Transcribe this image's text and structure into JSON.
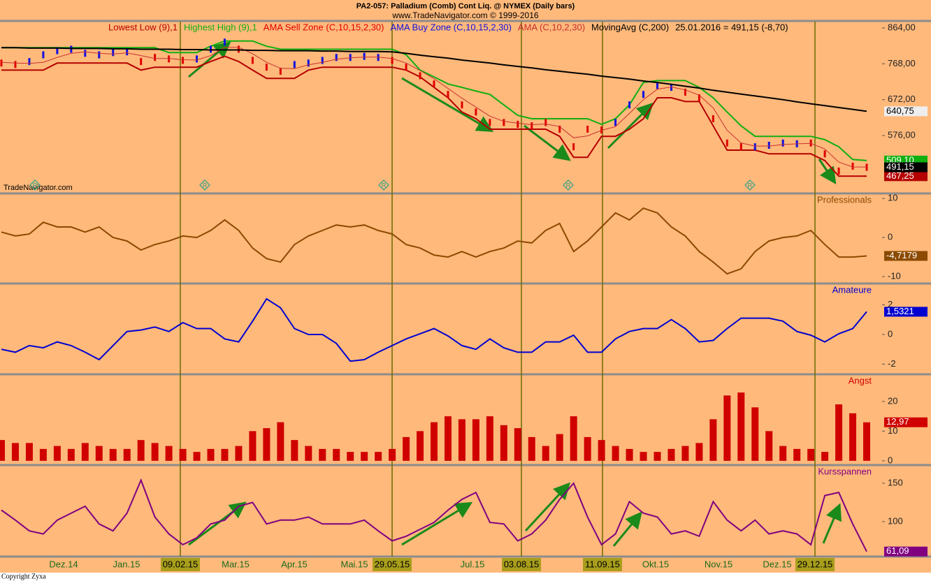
{
  "header": {
    "title": "PA2-057:  Palladium (Comb) Cont Liq. @ NYMEX  (Daily bars)",
    "subtitle": "www.TradeNavigator.com © 1999-2016"
  },
  "watermark": "TradeNavigator.com",
  "copyright": "Copyright  Zyxa",
  "signals": [
    "R",
    "R",
    "R",
    "R",
    "R"
  ],
  "x_axis": {
    "labels": [
      "Dez.14",
      "Jan.15",
      "Mar.15",
      "Apr.15",
      "Mai.15",
      "Jul.15",
      "Okt.15",
      "Nov.15",
      "Dez.15"
    ],
    "event_dates": [
      "09.02.15",
      "29.05.15",
      "03.08.15",
      "11.09.15",
      "29.12.15"
    ]
  },
  "chart_data": [
    {
      "type": "line",
      "info": "25.01.2016 = 491,15 (-8,70)",
      "ylim": [
        423,
        882.6
      ],
      "yticks": [
        {
          "value": 864,
          "label": "864,00"
        },
        {
          "value": 768,
          "label": "768,00"
        },
        {
          "value": 672,
          "label": "672,00"
        },
        {
          "value": 576,
          "label": "576,00"
        }
      ],
      "series": [
        {
          "name": "Lowest Low (9),1",
          "color": "#b40000",
          "last_label": "467,25",
          "values": [
            751,
            751,
            751,
            751,
            770,
            770,
            770,
            770,
            770,
            770,
            751,
            759,
            759,
            759,
            759,
            774,
            788,
            774,
            751,
            729,
            729,
            729,
            751,
            759,
            759,
            759,
            759,
            759,
            759,
            751,
            733,
            705,
            677,
            639,
            621,
            593,
            593,
            593,
            593,
            593,
            574,
            518,
            518,
            574,
            574,
            593,
            621,
            677,
            677,
            667,
            667,
            602,
            537,
            537,
            537,
            527,
            527,
            527,
            527,
            509,
            467.25,
            467.25,
            467.25
          ]
        },
        {
          "name": "Highest High (9),1",
          "color": "#10b010",
          "last_label": "509,10",
          "values": [
            811,
            811,
            811,
            811,
            811,
            811,
            811,
            811,
            811,
            811,
            811,
            811,
            798,
            798,
            798,
            815,
            829,
            829,
            829,
            815,
            807,
            807,
            807,
            807,
            807,
            807,
            807,
            807,
            807,
            792,
            751,
            733,
            714,
            705,
            695,
            686,
            658,
            630,
            621,
            621,
            621,
            621,
            621,
            606,
            621,
            658,
            718,
            723,
            723,
            723,
            705,
            677,
            639,
            602,
            574,
            574,
            574,
            574,
            574,
            565,
            546,
            512,
            509.1
          ]
        },
        {
          "name": "AMA Sell Zone (C,10,15,2,30)",
          "color": "#e00000",
          "style": "bars",
          "last_label": "491,15",
          "label_fill": "#000000",
          "values": [
            770,
            766,
            null,
            null,
            null,
            null,
            null,
            null,
            null,
            null,
            774,
            785,
            781,
            777,
            null,
            null,
            null,
            807,
            777,
            759,
            748,
            null,
            null,
            null,
            null,
            null,
            null,
            null,
            777,
            759,
            736,
            714,
            686,
            658,
            639,
            611,
            611,
            606,
            602,
            611,
            593,
            546,
            593,
            591,
            null,
            null,
            null,
            null,
            null,
            692,
            677,
            621,
            556,
            546,
            null,
            null,
            null,
            null,
            556,
            527,
            481,
            494,
            491.15
          ]
        },
        {
          "name": "AMA Buy Zone (C,10,15,2,30)",
          "color": "#1010e0",
          "style": "bars",
          "values": [
            null,
            null,
            774,
            792,
            803,
            807,
            796,
            792,
            798,
            800,
            null,
            null,
            null,
            null,
            781,
            807,
            826,
            null,
            null,
            null,
            null,
            766,
            770,
            777,
            785,
            785,
            788,
            785,
            null,
            null,
            null,
            null,
            null,
            null,
            null,
            null,
            null,
            null,
            null,
            null,
            null,
            null,
            null,
            null,
            611,
            658,
            686,
            710,
            705,
            null,
            null,
            null,
            null,
            null,
            546,
            550,
            556,
            554,
            null,
            null,
            null,
            null,
            null
          ]
        },
        {
          "name": "AMA (C,10,2,30)",
          "color": "#c83030",
          "values": [
            772,
            770,
            769,
            772,
            785,
            796,
            800,
            796,
            794,
            797,
            790,
            782,
            782,
            779,
            778,
            790,
            812,
            812,
            795,
            772,
            756,
            755,
            765,
            772,
            780,
            784,
            786,
            786,
            782,
            770,
            750,
            728,
            702,
            676,
            652,
            628,
            614,
            609,
            605,
            607,
            600,
            570,
            575,
            590,
            600,
            635,
            672,
            700,
            706,
            698,
            684,
            650,
            590,
            556,
            548,
            548,
            552,
            554,
            555,
            540,
            505,
            492,
            492
          ]
        },
        {
          "name": "MovingAvg (C,200)",
          "color": "#000000",
          "last_label": "640,75",
          "label_fill": "#eeeeee",
          "values": [
            811,
            811,
            810,
            810,
            810,
            809,
            809,
            809,
            808,
            808,
            807,
            807,
            807,
            806,
            806,
            805,
            805,
            805,
            804,
            804,
            803,
            803,
            803,
            802,
            802,
            801,
            801,
            801,
            800,
            796,
            791,
            787,
            783,
            778,
            774,
            770,
            765,
            761,
            757,
            752,
            748,
            744,
            740,
            735,
            731,
            727,
            722,
            718,
            713,
            708,
            703,
            697,
            692,
            687,
            682,
            677,
            672,
            666,
            661,
            656,
            651,
            646,
            640.75
          ]
        }
      ]
    },
    {
      "type": "line",
      "title": "Professionals",
      "color": "#8b4a00",
      "last_label": "-4,7179",
      "ylim": [
        -11.6,
        11.1
      ],
      "yticks": [
        10,
        0,
        -10
      ],
      "values": [
        1.4,
        0.4,
        0.9,
        3.9,
        2.7,
        2.7,
        1.4,
        2.7,
        0,
        -0.9,
        -3.2,
        -1.8,
        -0.9,
        0.4,
        0,
        1.8,
        4.5,
        1.8,
        -2.7,
        -5.4,
        -6.3,
        -1.8,
        0.4,
        1.8,
        3.2,
        2.7,
        3.2,
        1.8,
        0.9,
        -1.8,
        -2.7,
        -4.5,
        -5,
        -3.6,
        -5,
        -3.6,
        -2.7,
        -0.9,
        -1.4,
        1.8,
        3.6,
        -3.6,
        -0.9,
        2.7,
        6.3,
        4.5,
        7.5,
        6.3,
        2.7,
        0.4,
        -3.6,
        -6.3,
        -9.3,
        -8,
        -3.6,
        -0.9,
        0,
        0.4,
        1.8,
        -1.8,
        -5,
        -5,
        -4.7179
      ]
    },
    {
      "type": "line",
      "title": "Amateure",
      "color": "#0000d0",
      "last_label": "1,5321",
      "ylim": [
        -2.64,
        3.39
      ],
      "yticks": [
        2,
        0,
        -2
      ],
      "values": [
        -1.0,
        -1.2,
        -0.75,
        -0.9,
        -0.5,
        -0.75,
        -1.2,
        -1.7,
        -0.75,
        0.2,
        0.3,
        0.5,
        0.2,
        0.8,
        0.4,
        0.4,
        -0.3,
        -0.5,
        0.9,
        2.4,
        1.8,
        0.4,
        0,
        0,
        -0.6,
        -1.8,
        -1.7,
        -1.2,
        -0.75,
        -0.3,
        0.05,
        0.4,
        -0.1,
        -0.75,
        -1.0,
        -0.3,
        -0.9,
        -1.2,
        -1.2,
        -0.5,
        -0.5,
        -0.05,
        -1.2,
        -1.2,
        -0.3,
        0.2,
        0.4,
        0.4,
        1.0,
        0.4,
        -0.5,
        -0.4,
        0.4,
        1.1,
        1.1,
        1.1,
        0.9,
        0.2,
        -0.05,
        -0.5,
        0.05,
        0.4,
        1.5321
      ]
    },
    {
      "type": "bar",
      "title": "Angst",
      "color": "#d00000",
      "last_label": "12,97",
      "ylim": [
        -1.2,
        28.9
      ],
      "yticks": [
        20,
        10,
        0
      ],
      "values": [
        7,
        6,
        6,
        4,
        5,
        4,
        6,
        5,
        4,
        4,
        7,
        6,
        5,
        4,
        3,
        4,
        4,
        5,
        10,
        11,
        13,
        7,
        5,
        4,
        4,
        3,
        3,
        3,
        4,
        8,
        10,
        13,
        15,
        14,
        14,
        15,
        12,
        11,
        8,
        5,
        9,
        15,
        8,
        7,
        5,
        4,
        3,
        3,
        4,
        5,
        6,
        14,
        22,
        23,
        18,
        10,
        5,
        4,
        4,
        3,
        19,
        16,
        12.97
      ]
    },
    {
      "type": "line",
      "title": "Kursspannen",
      "color": "#800080",
      "last_label": "61,09",
      "ylim": [
        54.5,
        172.7
      ],
      "yticks": [
        150,
        100
      ],
      "values": [
        115,
        102,
        88,
        84,
        102,
        111,
        120,
        97,
        88,
        111,
        154,
        106,
        84,
        70,
        79,
        97,
        102,
        120,
        125,
        97,
        102,
        102,
        106,
        97,
        97,
        97,
        102,
        88,
        75,
        81,
        90,
        99,
        115,
        129,
        138,
        99,
        97,
        75,
        84,
        102,
        129,
        150,
        106,
        70,
        84,
        126,
        111,
        106,
        84,
        88,
        81,
        126,
        102,
        88,
        102,
        84,
        88,
        84,
        70,
        134,
        138,
        97,
        61.09
      ]
    }
  ]
}
